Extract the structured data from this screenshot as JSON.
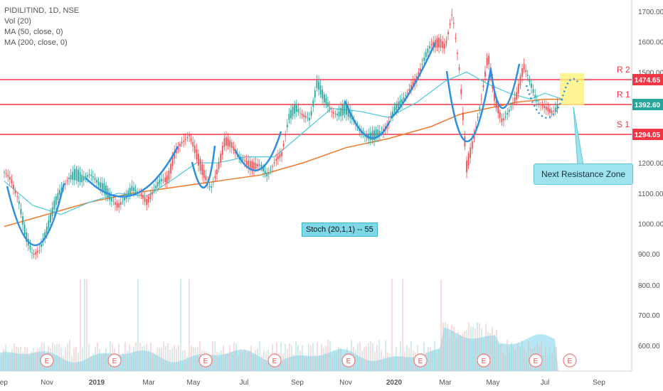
{
  "legend": {
    "symbol": "PIDILITIND, 1D, NSE",
    "vol": "Vol (20)",
    "ma50": "MA (50, close, 0)",
    "ma200": "MA (200, close, 0)"
  },
  "annotations": {
    "next_resistance": "Next Resistance Zone",
    "stoch": "Stoch (20,1,1) -- 55"
  },
  "colors": {
    "candle_up": "#26a69a",
    "candle_down": "#ef5350",
    "ma50": "#4ec9dc",
    "ma200": "#f07a2b",
    "level_line": "#f23645",
    "current_line": "#8a8a8a",
    "current_badge": "#26a69a",
    "curve": "#2f8ee0",
    "volume_area": "#9fdff0",
    "zone": "#fff27a"
  },
  "chart_data": {
    "type": "candlestick",
    "y_axis": {
      "ticks": [
        "1700.00",
        "1600.00",
        "1500.00",
        "1400.00",
        "1300.00",
        "1200.00",
        "1100.00",
        "1000.00",
        "900.00"
      ],
      "range": [
        830,
        1740
      ]
    },
    "volume_axis": {
      "ticks": [
        "800.00",
        "700.00",
        "600.00"
      ]
    },
    "x_axis": {
      "ticks": [
        "Sep",
        "Nov",
        "2019",
        "Mar",
        "May",
        "Jul",
        "Sep",
        "Nov",
        "2020",
        "Mar",
        "May",
        "Jul",
        "Sep"
      ]
    },
    "levels": [
      {
        "name": "R 2",
        "value": 1474.65,
        "label": "1474.65"
      },
      {
        "name": "R 1",
        "value": 1392.6,
        "label": "1392.60"
      },
      {
        "name": "S 1",
        "value": 1294.05,
        "label": "1294.05"
      }
    ],
    "current_price": {
      "value": 1392.6,
      "label": "1392.60"
    },
    "earnings_markers": [
      "E",
      "E",
      "E",
      "E",
      "E",
      "E",
      "E",
      "E",
      "E",
      "E"
    ],
    "price_path": [
      [
        0,
        1170
      ],
      [
        10,
        1140
      ],
      [
        20,
        1080
      ],
      [
        30,
        960
      ],
      [
        40,
        900
      ],
      [
        50,
        910
      ],
      [
        60,
        980
      ],
      [
        70,
        1060
      ],
      [
        80,
        1110
      ],
      [
        90,
        1150
      ],
      [
        100,
        1160
      ],
      [
        110,
        1150
      ],
      [
        120,
        1160
      ],
      [
        130,
        1140
      ],
      [
        140,
        1120
      ],
      [
        150,
        1080
      ],
      [
        160,
        1060
      ],
      [
        170,
        1080
      ],
      [
        180,
        1120
      ],
      [
        190,
        1100
      ],
      [
        200,
        1070
      ],
      [
        210,
        1110
      ],
      [
        220,
        1140
      ],
      [
        230,
        1150
      ],
      [
        240,
        1230
      ],
      [
        250,
        1270
      ],
      [
        260,
        1290
      ],
      [
        270,
        1230
      ],
      [
        280,
        1170
      ],
      [
        290,
        1110
      ],
      [
        300,
        1180
      ],
      [
        310,
        1270
      ],
      [
        320,
        1260
      ],
      [
        330,
        1220
      ],
      [
        340,
        1200
      ],
      [
        350,
        1190
      ],
      [
        360,
        1190
      ],
      [
        370,
        1160
      ],
      [
        380,
        1200
      ],
      [
        390,
        1230
      ],
      [
        400,
        1350
      ],
      [
        410,
        1380
      ],
      [
        420,
        1360
      ],
      [
        430,
        1340
      ],
      [
        440,
        1470
      ],
      [
        450,
        1410
      ],
      [
        460,
        1370
      ],
      [
        470,
        1360
      ],
      [
        480,
        1380
      ],
      [
        490,
        1350
      ],
      [
        500,
        1300
      ],
      [
        510,
        1290
      ],
      [
        520,
        1290
      ],
      [
        530,
        1300
      ],
      [
        540,
        1330
      ],
      [
        550,
        1380
      ],
      [
        560,
        1410
      ],
      [
        570,
        1440
      ],
      [
        580,
        1480
      ],
      [
        590,
        1540
      ],
      [
        600,
        1590
      ],
      [
        610,
        1600
      ],
      [
        620,
        1580
      ],
      [
        630,
        1700
      ],
      [
        640,
        1500
      ],
      [
        650,
        1190
      ],
      [
        660,
        1280
      ],
      [
        670,
        1400
      ],
      [
        680,
        1560
      ],
      [
        690,
        1400
      ],
      [
        700,
        1340
      ],
      [
        710,
        1370
      ],
      [
        720,
        1420
      ],
      [
        730,
        1520
      ],
      [
        740,
        1460
      ],
      [
        750,
        1400
      ],
      [
        760,
        1380
      ],
      [
        770,
        1370
      ],
      [
        780,
        1390
      ]
    ],
    "ma50_path": [
      [
        0,
        1140
      ],
      [
        40,
        1060
      ],
      [
        80,
        1030
      ],
      [
        120,
        1070
      ],
      [
        160,
        1100
      ],
      [
        200,
        1090
      ],
      [
        240,
        1150
      ],
      [
        270,
        1200
      ],
      [
        300,
        1200
      ],
      [
        340,
        1220
      ],
      [
        380,
        1220
      ],
      [
        420,
        1300
      ],
      [
        460,
        1380
      ],
      [
        500,
        1370
      ],
      [
        540,
        1350
      ],
      [
        580,
        1400
      ],
      [
        620,
        1470
      ],
      [
        650,
        1500
      ],
      [
        680,
        1460
      ],
      [
        710,
        1430
      ],
      [
        740,
        1410
      ],
      [
        760,
        1430
      ],
      [
        785,
        1410
      ]
    ],
    "ma200_path": [
      [
        0,
        990
      ],
      [
        60,
        1030
      ],
      [
        120,
        1070
      ],
      [
        180,
        1100
      ],
      [
        240,
        1120
      ],
      [
        300,
        1140
      ],
      [
        360,
        1160
      ],
      [
        420,
        1200
      ],
      [
        480,
        1250
      ],
      [
        540,
        1280
      ],
      [
        600,
        1320
      ],
      [
        640,
        1360
      ],
      [
        680,
        1380
      ],
      [
        720,
        1400
      ],
      [
        760,
        1410
      ],
      [
        785,
        1410
      ]
    ]
  }
}
